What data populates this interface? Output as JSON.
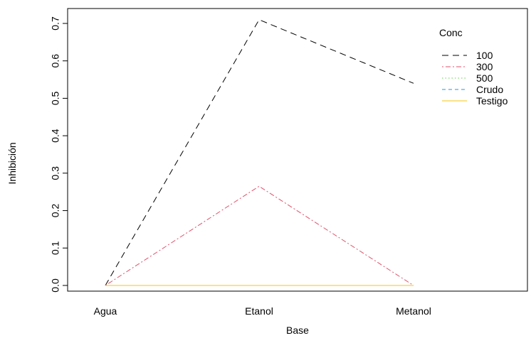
{
  "chart_data": {
    "type": "line",
    "title": "",
    "xlabel": "Base",
    "ylabel": "Inhibición",
    "categories": [
      "Agua",
      "Etanol",
      "Metanol"
    ],
    "ylim": [
      -0.025,
      0.74
    ],
    "yticks": [
      "0.0",
      "0.1",
      "0.2",
      "0.3",
      "0.4",
      "0.5",
      "0.6",
      "0.7"
    ],
    "grid": false,
    "legend": {
      "title": "Conc",
      "placement": "top-right"
    },
    "series": [
      {
        "name": "100",
        "values": [
          0.0,
          0.71,
          0.54
        ],
        "color": "#000000",
        "dash": "longdash"
      },
      {
        "name": "300",
        "values": [
          0.0,
          0.265,
          0.0
        ],
        "color": "#DF536B",
        "dash": "dotdash"
      },
      {
        "name": "500",
        "values": [
          0.0,
          0.0,
          0.0
        ],
        "color": "#61D04F",
        "dash": "dotted"
      },
      {
        "name": "Crudo",
        "values": [
          0.0,
          0.0,
          0.0
        ],
        "color": "#2297E6",
        "dash": "dashed"
      },
      {
        "name": "Testigo",
        "values": [
          0.0,
          0.0,
          0.0
        ],
        "color": "#F5C710",
        "dash": "solid"
      }
    ]
  }
}
